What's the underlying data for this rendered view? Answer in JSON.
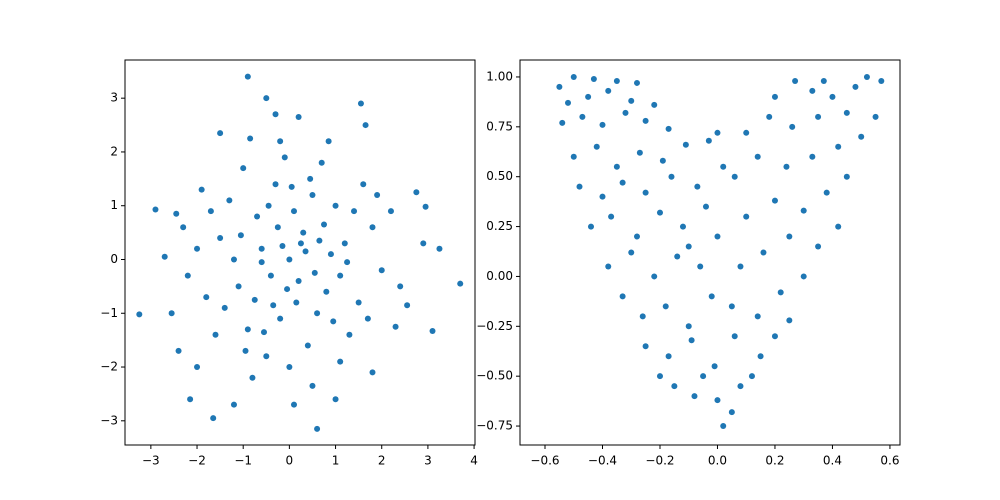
{
  "chart_data": [
    {
      "type": "scatter",
      "color": "#1f77b4",
      "x": [
        -0.9,
        -0.5,
        1.55,
        3.7,
        -3.25,
        -2.9,
        2.75,
        2.95,
        3.25,
        3.1,
        0.6,
        -1.65,
        -2.15,
        0.1,
        -1.2,
        -2.4,
        1.0,
        1.8,
        -1.5,
        1.65,
        0.2,
        -0.85,
        -0.3,
        2.3,
        2.55,
        -2.55,
        -2.7,
        -2.45,
        -2.0,
        2.9,
        0.0,
        0.3,
        -0.4,
        0.8,
        -0.7,
        1.2,
        -1.1,
        0.5,
        -0.2,
        1.5,
        -1.5,
        0.1,
        0.6,
        -0.9,
        1.0,
        -0.3,
        0.2,
        -0.6,
        0.9,
        -1.3,
        1.8,
        -1.8,
        0.4,
        -0.5,
        1.3,
        -1.0,
        0.7,
        -2.0,
        2.0,
        0.0,
        -0.1,
        1.6,
        -1.6,
        2.2,
        -2.2,
        0.35,
        -0.25,
        0.55,
        -0.75,
        1.1,
        -1.2,
        0.15,
        -0.45,
        0.75,
        -0.05,
        1.4,
        -1.4,
        0.45,
        -0.8,
        1.1,
        -1.9,
        1.9,
        -0.6,
        0.25,
        0.95,
        -1.05,
        0.65,
        -0.35,
        1.25,
        -0.15,
        2.4,
        -2.3,
        0.85,
        -0.95,
        1.7,
        -1.7,
        0.05,
        -0.55,
        0.5,
        -0.2
      ],
      "y": [
        3.4,
        3.0,
        2.9,
        -0.45,
        -1.02,
        0.93,
        1.25,
        0.98,
        0.2,
        -1.33,
        -3.15,
        -2.95,
        -2.6,
        -2.7,
        -2.7,
        -1.7,
        -2.6,
        -2.1,
        2.35,
        2.5,
        2.65,
        2.25,
        2.7,
        -1.25,
        -0.85,
        -1.0,
        0.05,
        0.85,
        -2.0,
        0.3,
        0.0,
        0.5,
        -0.3,
        -0.6,
        0.8,
        0.3,
        -0.5,
        1.2,
        -1.1,
        -0.8,
        0.4,
        0.9,
        -1.0,
        -1.3,
        1.0,
        1.4,
        -0.4,
        0.2,
        0.1,
        1.1,
        0.6,
        -0.7,
        -1.6,
        -1.8,
        -1.4,
        1.7,
        1.8,
        0.2,
        -0.2,
        -2.0,
        1.9,
        1.4,
        -1.4,
        0.9,
        -0.3,
        0.15,
        0.6,
        -0.25,
        -0.75,
        -0.3,
        0.0,
        -0.8,
        1.0,
        0.65,
        -0.55,
        0.9,
        -0.9,
        1.5,
        -2.2,
        -1.9,
        1.3,
        1.2,
        -0.05,
        0.3,
        -1.15,
        0.45,
        0.35,
        -0.85,
        -0.05,
        0.25,
        -0.5,
        0.6,
        2.2,
        -1.7,
        -1.1,
        0.9,
        1.35,
        -1.35,
        -2.35,
        2.2
      ],
      "xlim": [
        -3.56,
        4.02
      ],
      "ylim": [
        -3.45,
        3.71
      ],
      "xticks": [
        {
          "value": -3,
          "label": "−3"
        },
        {
          "value": -2,
          "label": "−2"
        },
        {
          "value": -1,
          "label": "−1"
        },
        0,
        1,
        2,
        3,
        4
      ],
      "yticks": [
        {
          "value": -3,
          "label": "−3"
        },
        {
          "value": -2,
          "label": "−2"
        },
        {
          "value": -1,
          "label": "−1"
        },
        0,
        1,
        2,
        3
      ]
    },
    {
      "type": "scatter",
      "color": "#1f77b4",
      "x": [
        -0.55,
        -0.5,
        -0.43,
        -0.35,
        -0.28,
        -0.52,
        -0.45,
        -0.38,
        -0.3,
        -0.22,
        -0.54,
        -0.47,
        -0.4,
        -0.32,
        -0.25,
        -0.17,
        -0.5,
        -0.42,
        -0.35,
        -0.27,
        -0.19,
        -0.11,
        -0.03,
        -0.48,
        -0.4,
        -0.33,
        -0.25,
        -0.16,
        -0.07,
        0.02,
        -0.44,
        -0.37,
        -0.28,
        -0.2,
        -0.12,
        -0.04,
        -0.38,
        -0.3,
        -0.22,
        -0.14,
        -0.06,
        -0.33,
        -0.26,
        -0.18,
        -0.1,
        -0.02,
        -0.25,
        -0.17,
        -0.09,
        -0.01,
        -0.15,
        -0.08,
        0.0,
        0.02,
        0.05,
        0.08,
        0.12,
        0.15,
        0.2,
        0.25,
        0.06,
        0.14,
        0.22,
        0.3,
        0.08,
        0.16,
        0.25,
        0.35,
        0.42,
        0.1,
        0.2,
        0.3,
        0.38,
        0.45,
        0.06,
        0.14,
        0.24,
        0.33,
        0.42,
        0.5,
        0.1,
        0.18,
        0.26,
        0.35,
        0.45,
        0.55,
        0.2,
        0.27,
        0.33,
        0.4,
        0.48,
        0.57,
        0.52,
        0.37,
        -0.1,
        0.0,
        0.05,
        -0.05,
        0.0,
        -0.2
      ],
      "y": [
        0.95,
        1.0,
        0.99,
        0.98,
        0.97,
        0.87,
        0.9,
        0.93,
        0.88,
        0.86,
        0.77,
        0.8,
        0.76,
        0.82,
        0.78,
        0.74,
        0.6,
        0.65,
        0.55,
        0.62,
        0.58,
        0.66,
        0.68,
        0.45,
        0.4,
        0.47,
        0.42,
        0.5,
        0.45,
        0.55,
        0.25,
        0.3,
        0.2,
        0.32,
        0.25,
        0.35,
        0.05,
        0.12,
        0.0,
        0.1,
        0.05,
        -0.1,
        -0.2,
        -0.15,
        -0.25,
        -0.1,
        -0.35,
        -0.4,
        -0.32,
        -0.45,
        -0.55,
        -0.6,
        -0.62,
        -0.75,
        -0.68,
        -0.55,
        -0.5,
        -0.4,
        -0.3,
        -0.22,
        -0.3,
        -0.2,
        -0.08,
        0.0,
        0.05,
        0.12,
        0.2,
        0.15,
        0.25,
        0.3,
        0.38,
        0.33,
        0.42,
        0.5,
        0.5,
        0.6,
        0.55,
        0.6,
        0.65,
        0.7,
        0.72,
        0.8,
        0.75,
        0.8,
        0.82,
        0.8,
        0.9,
        0.98,
        0.93,
        0.9,
        0.95,
        0.98,
        1.0,
        0.98,
        0.15,
        0.2,
        -0.15,
        -0.5,
        0.72,
        -0.5
      ],
      "xlim": [
        -0.687,
        0.635
      ],
      "ylim": [
        -0.845,
        1.085
      ],
      "xticks": [
        {
          "value": -0.6,
          "label": "−0.6"
        },
        {
          "value": -0.4,
          "label": "−0.4"
        },
        {
          "value": -0.2,
          "label": "−0.2"
        },
        {
          "value": 0,
          "label": "0.0"
        },
        {
          "value": 0.2,
          "label": "0.2"
        },
        {
          "value": 0.4,
          "label": "0.4"
        },
        {
          "value": 0.6,
          "label": "0.6"
        }
      ],
      "yticks": [
        {
          "value": -0.75,
          "label": "−0.75"
        },
        {
          "value": -0.5,
          "label": "−0.50"
        },
        {
          "value": -0.25,
          "label": "−0.25"
        },
        {
          "value": 0,
          "label": "0.00"
        },
        {
          "value": 0.25,
          "label": "0.25"
        },
        {
          "value": 0.5,
          "label": "0.50"
        },
        {
          "value": 0.75,
          "label": "0.75"
        },
        {
          "value": 1,
          "label": "1.00"
        }
      ]
    }
  ]
}
